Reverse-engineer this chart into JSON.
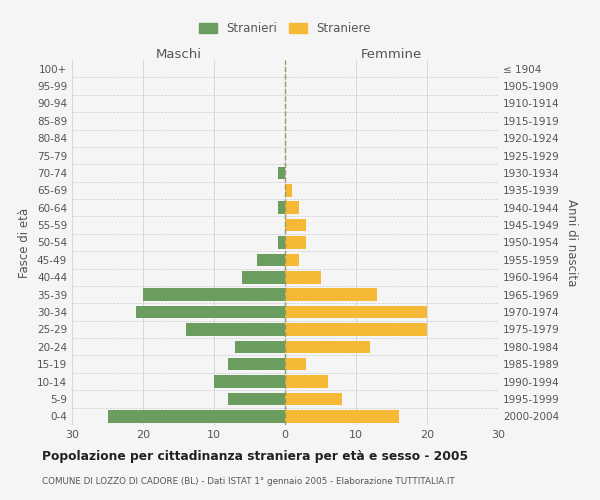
{
  "age_groups": [
    "0-4",
    "5-9",
    "10-14",
    "15-19",
    "20-24",
    "25-29",
    "30-34",
    "35-39",
    "40-44",
    "45-49",
    "50-54",
    "55-59",
    "60-64",
    "65-69",
    "70-74",
    "75-79",
    "80-84",
    "85-89",
    "90-94",
    "95-99",
    "100+"
  ],
  "birth_years": [
    "2000-2004",
    "1995-1999",
    "1990-1994",
    "1985-1989",
    "1980-1984",
    "1975-1979",
    "1970-1974",
    "1965-1969",
    "1960-1964",
    "1955-1959",
    "1950-1954",
    "1945-1949",
    "1940-1944",
    "1935-1939",
    "1930-1934",
    "1925-1929",
    "1920-1924",
    "1915-1919",
    "1910-1914",
    "1905-1909",
    "≤ 1904"
  ],
  "males": [
    25,
    8,
    10,
    8,
    7,
    14,
    21,
    20,
    6,
    4,
    1,
    0,
    1,
    0,
    1,
    0,
    0,
    0,
    0,
    0,
    0
  ],
  "females": [
    16,
    8,
    6,
    3,
    12,
    20,
    20,
    13,
    5,
    2,
    3,
    3,
    2,
    1,
    0,
    0,
    0,
    0,
    0,
    0,
    0
  ],
  "male_color": "#6b9e5e",
  "female_color": "#f5b935",
  "xlim": 30,
  "title": "Popolazione per cittadinanza straniera per età e sesso - 2005",
  "subtitle": "COMUNE DI LOZZO DI CADORE (BL) - Dati ISTAT 1° gennaio 2005 - Elaborazione TUTTITALIA.IT",
  "ylabel_left": "Fasce di età",
  "ylabel_right": "Anni di nascita",
  "xlabel_left": "Maschi",
  "xlabel_right": "Femmine",
  "legend_male": "Stranieri",
  "legend_female": "Straniere",
  "background_color": "#f5f5f5",
  "grid_color": "#cccccc",
  "text_color": "#555555",
  "dashed_line_color": "#999966"
}
